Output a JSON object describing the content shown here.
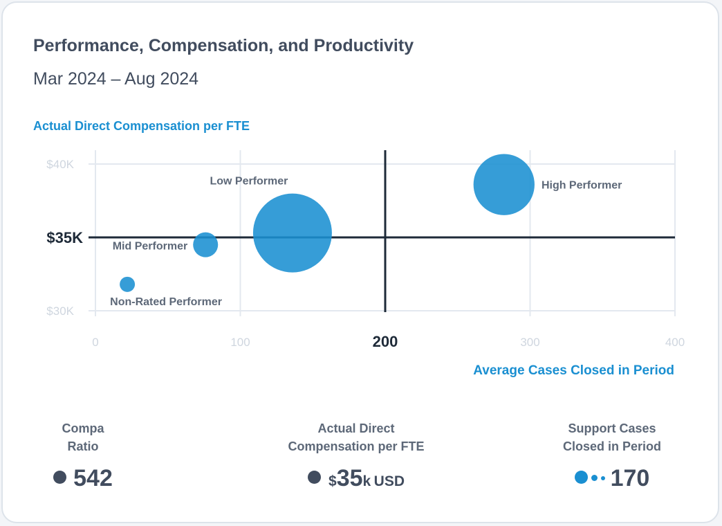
{
  "header": {
    "title": "Performance, Compensation, and Productivity",
    "date_range": "Mar 2024 – Aug 2024"
  },
  "chart_data": {
    "type": "bubble",
    "ylabel": "Actual Direct Compensation per FTE",
    "xlabel": "Average Cases Closed in Period",
    "xlim": [
      0,
      400
    ],
    "ylim": [
      30,
      40
    ],
    "x_ticks": [
      "0",
      "100",
      "300",
      "400"
    ],
    "y_ticks": [
      "$40K",
      "$30K"
    ],
    "reference_lines": {
      "x": {
        "value": 200,
        "label": "200"
      },
      "y": {
        "value": 35,
        "label": "$35K"
      }
    },
    "series": [
      {
        "name": "Non-Rated Performer",
        "x": 22,
        "y": 31.8,
        "size": 1
      },
      {
        "name": "Mid Performer",
        "x": 76,
        "y": 34.5,
        "size": 3
      },
      {
        "name": "Low Performer",
        "x": 136,
        "y": 35.3,
        "size": 30
      },
      {
        "name": "High Performer",
        "x": 282,
        "y": 38.6,
        "size": 18
      }
    ],
    "color": "#1a8fd1"
  },
  "kpis": [
    {
      "label_line1": "Compa",
      "label_line2": "Ratio",
      "value": "542"
    },
    {
      "label_line1": "Actual Direct",
      "label_line2": "Compensation per FTE",
      "prefix": "$",
      "value": "35",
      "suffix": "k",
      "unit": "USD"
    },
    {
      "label_line1": "Support Cases",
      "label_line2": "Closed in Period",
      "value": "170"
    }
  ],
  "colors": {
    "accent": "#1a8fd1",
    "text": "#414c5e",
    "grid": "#e3e8ef",
    "axis_muted": "#cfd6df",
    "reference": "#1e2a38"
  }
}
